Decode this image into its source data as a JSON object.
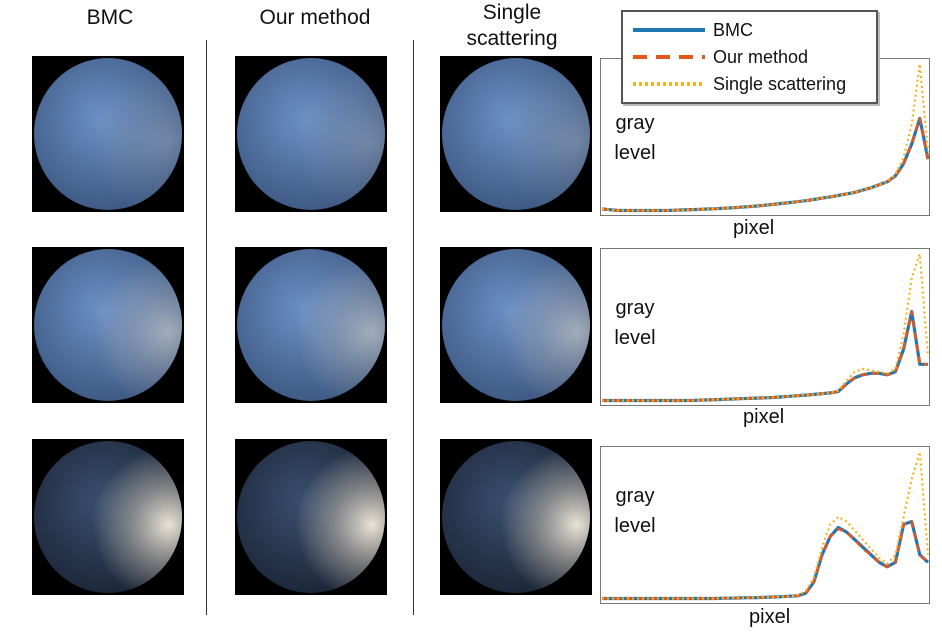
{
  "columns": {
    "bmc": "BMC",
    "ours": "Our method",
    "single_line1": "Single",
    "single_line2": "scattering"
  },
  "plot_labels": {
    "ylabel_line1": "gray",
    "ylabel_line2": "level",
    "xlabel": "pixel"
  },
  "legend": [
    {
      "name": "BMC",
      "color": "#1f77b4",
      "style": "solid"
    },
    {
      "name": "Our method",
      "color": "#e3571c",
      "style": "dashed"
    },
    {
      "name": "Single scattering",
      "color": "#f0b323",
      "style": "dotted"
    }
  ],
  "chart_data": [
    {
      "type": "line",
      "xlabel": "pixel",
      "ylabel": "gray level",
      "x": [
        0,
        1,
        2,
        3,
        4,
        5,
        6,
        7,
        8,
        9,
        10,
        11,
        12,
        13,
        14,
        15,
        16,
        17,
        18,
        19,
        20,
        21,
        22,
        23,
        24,
        25,
        26,
        27,
        28,
        29,
        30,
        31,
        32,
        33,
        34,
        35,
        36,
        37,
        38,
        39,
        40
      ],
      "ylim": [
        0,
        1
      ],
      "series": [
        {
          "name": "BMC",
          "values": [
            0.02,
            0.015,
            0.01,
            0.01,
            0.01,
            0.01,
            0.01,
            0.01,
            0.01,
            0.012,
            0.014,
            0.016,
            0.018,
            0.02,
            0.022,
            0.025,
            0.028,
            0.032,
            0.036,
            0.04,
            0.045,
            0.05,
            0.056,
            0.062,
            0.068,
            0.075,
            0.083,
            0.092,
            0.1,
            0.11,
            0.12,
            0.13,
            0.145,
            0.16,
            0.18,
            0.2,
            0.24,
            0.32,
            0.45,
            0.62,
            0.35
          ]
        },
        {
          "name": "Our method",
          "values": [
            0.02,
            0.015,
            0.01,
            0.01,
            0.01,
            0.01,
            0.01,
            0.01,
            0.01,
            0.012,
            0.014,
            0.016,
            0.018,
            0.02,
            0.022,
            0.025,
            0.028,
            0.032,
            0.036,
            0.04,
            0.045,
            0.05,
            0.056,
            0.062,
            0.068,
            0.075,
            0.083,
            0.092,
            0.1,
            0.11,
            0.12,
            0.13,
            0.145,
            0.16,
            0.18,
            0.2,
            0.24,
            0.32,
            0.45,
            0.62,
            0.35
          ]
        },
        {
          "name": "Single scattering",
          "values": [
            0.02,
            0.015,
            0.01,
            0.01,
            0.01,
            0.01,
            0.01,
            0.01,
            0.01,
            0.012,
            0.014,
            0.016,
            0.018,
            0.02,
            0.022,
            0.025,
            0.028,
            0.032,
            0.036,
            0.04,
            0.045,
            0.05,
            0.056,
            0.062,
            0.068,
            0.075,
            0.083,
            0.092,
            0.1,
            0.11,
            0.12,
            0.13,
            0.145,
            0.16,
            0.18,
            0.2,
            0.25,
            0.36,
            0.58,
            0.98,
            0.4
          ]
        }
      ]
    },
    {
      "type": "line",
      "xlabel": "pixel",
      "ylabel": "gray level",
      "x": [
        0,
        1,
        2,
        3,
        4,
        5,
        6,
        7,
        8,
        9,
        10,
        11,
        12,
        13,
        14,
        15,
        16,
        17,
        18,
        19,
        20,
        21,
        22,
        23,
        24,
        25,
        26,
        27,
        28,
        29,
        30,
        31,
        32,
        33,
        34,
        35,
        36,
        37,
        38,
        39,
        40
      ],
      "ylim": [
        0,
        1
      ],
      "series": [
        {
          "name": "BMC",
          "values": [
            0.01,
            0.01,
            0.01,
            0.01,
            0.01,
            0.01,
            0.01,
            0.01,
            0.01,
            0.01,
            0.01,
            0.01,
            0.012,
            0.014,
            0.016,
            0.018,
            0.02,
            0.022,
            0.024,
            0.026,
            0.028,
            0.03,
            0.034,
            0.038,
            0.042,
            0.046,
            0.05,
            0.055,
            0.06,
            0.07,
            0.12,
            0.16,
            0.18,
            0.19,
            0.19,
            0.18,
            0.2,
            0.35,
            0.6,
            0.25,
            0.25
          ]
        },
        {
          "name": "Our method",
          "values": [
            0.01,
            0.01,
            0.01,
            0.01,
            0.01,
            0.01,
            0.01,
            0.01,
            0.01,
            0.01,
            0.01,
            0.01,
            0.012,
            0.014,
            0.016,
            0.018,
            0.02,
            0.022,
            0.024,
            0.026,
            0.028,
            0.03,
            0.034,
            0.038,
            0.042,
            0.046,
            0.05,
            0.055,
            0.06,
            0.07,
            0.12,
            0.16,
            0.18,
            0.19,
            0.19,
            0.18,
            0.2,
            0.35,
            0.6,
            0.25,
            0.25
          ]
        },
        {
          "name": "Single scattering",
          "values": [
            0.01,
            0.01,
            0.01,
            0.01,
            0.01,
            0.01,
            0.01,
            0.01,
            0.01,
            0.01,
            0.01,
            0.01,
            0.012,
            0.014,
            0.016,
            0.018,
            0.02,
            0.022,
            0.024,
            0.026,
            0.028,
            0.03,
            0.034,
            0.038,
            0.042,
            0.046,
            0.05,
            0.055,
            0.06,
            0.075,
            0.14,
            0.2,
            0.22,
            0.21,
            0.2,
            0.19,
            0.22,
            0.45,
            0.82,
            0.98,
            0.3
          ]
        }
      ]
    },
    {
      "type": "line",
      "xlabel": "pixel",
      "ylabel": "gray level",
      "x": [
        0,
        1,
        2,
        3,
        4,
        5,
        6,
        7,
        8,
        9,
        10,
        11,
        12,
        13,
        14,
        15,
        16,
        17,
        18,
        19,
        20,
        21,
        22,
        23,
        24,
        25,
        26,
        27,
        28,
        29,
        30,
        31,
        32,
        33,
        34,
        35,
        36,
        37,
        38,
        39,
        40
      ],
      "ylim": [
        0,
        1
      ],
      "series": [
        {
          "name": "BMC",
          "values": [
            0.01,
            0.01,
            0.01,
            0.01,
            0.01,
            0.01,
            0.01,
            0.01,
            0.01,
            0.01,
            0.01,
            0.01,
            0.01,
            0.01,
            0.01,
            0.012,
            0.012,
            0.014,
            0.015,
            0.016,
            0.018,
            0.02,
            0.022,
            0.025,
            0.028,
            0.045,
            0.12,
            0.3,
            0.42,
            0.48,
            0.45,
            0.4,
            0.35,
            0.3,
            0.25,
            0.22,
            0.25,
            0.5,
            0.52,
            0.3,
            0.25
          ]
        },
        {
          "name": "Our method",
          "values": [
            0.01,
            0.01,
            0.01,
            0.01,
            0.01,
            0.01,
            0.01,
            0.01,
            0.01,
            0.01,
            0.01,
            0.01,
            0.01,
            0.01,
            0.01,
            0.012,
            0.012,
            0.014,
            0.015,
            0.016,
            0.018,
            0.02,
            0.022,
            0.025,
            0.028,
            0.045,
            0.12,
            0.3,
            0.42,
            0.47,
            0.45,
            0.4,
            0.34,
            0.3,
            0.25,
            0.22,
            0.25,
            0.5,
            0.52,
            0.3,
            0.25
          ]
        },
        {
          "name": "Single scattering",
          "values": [
            0.01,
            0.01,
            0.01,
            0.01,
            0.01,
            0.01,
            0.01,
            0.01,
            0.01,
            0.01,
            0.01,
            0.01,
            0.01,
            0.01,
            0.01,
            0.012,
            0.012,
            0.014,
            0.015,
            0.016,
            0.018,
            0.02,
            0.022,
            0.025,
            0.03,
            0.06,
            0.15,
            0.35,
            0.5,
            0.55,
            0.52,
            0.46,
            0.4,
            0.34,
            0.28,
            0.24,
            0.3,
            0.55,
            0.8,
            0.98,
            0.3
          ]
        }
      ]
    }
  ]
}
